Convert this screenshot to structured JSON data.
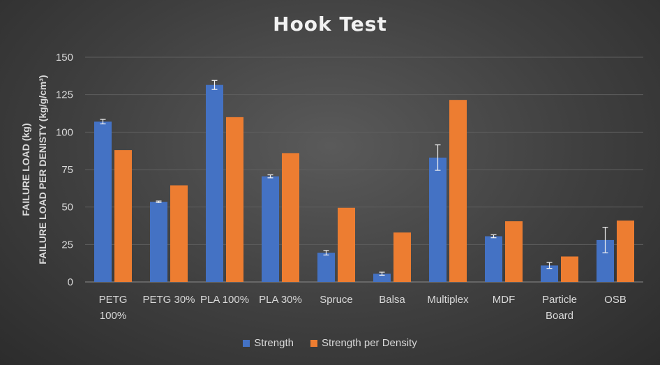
{
  "chart_data": {
    "type": "bar",
    "title": "Hook Test",
    "ylabel_lines": [
      "FAILURE LOAD (kg)",
      "FAILURE LOAD PER DENISTY (kg/g/cm³)"
    ],
    "xlabel": "",
    "ylim": [
      0,
      150
    ],
    "yticks": [
      0,
      25,
      50,
      75,
      100,
      125,
      150
    ],
    "grid": true,
    "legend_position": "bottom",
    "categories": [
      "PETG 100%",
      "PETG 30%",
      "PLA 100%",
      "PLA 30%",
      "Spruce",
      "Balsa",
      "Multiplex",
      "MDF",
      "Particle Board",
      "OSB"
    ],
    "series": [
      {
        "name": "Strength",
        "color": "#4472c4",
        "values": [
          107,
          53.5,
          131.5,
          70.5,
          19.5,
          5.5,
          83,
          30.5,
          11,
          28
        ],
        "error": [
          1.5,
          0.5,
          3,
          1,
          1.5,
          1,
          8.5,
          1,
          2,
          8.5
        ]
      },
      {
        "name": "Strength per Density",
        "color": "#ed7d31",
        "values": [
          88,
          64.5,
          110,
          86,
          49.5,
          33,
          121.5,
          40.5,
          17,
          41
        ]
      }
    ]
  }
}
